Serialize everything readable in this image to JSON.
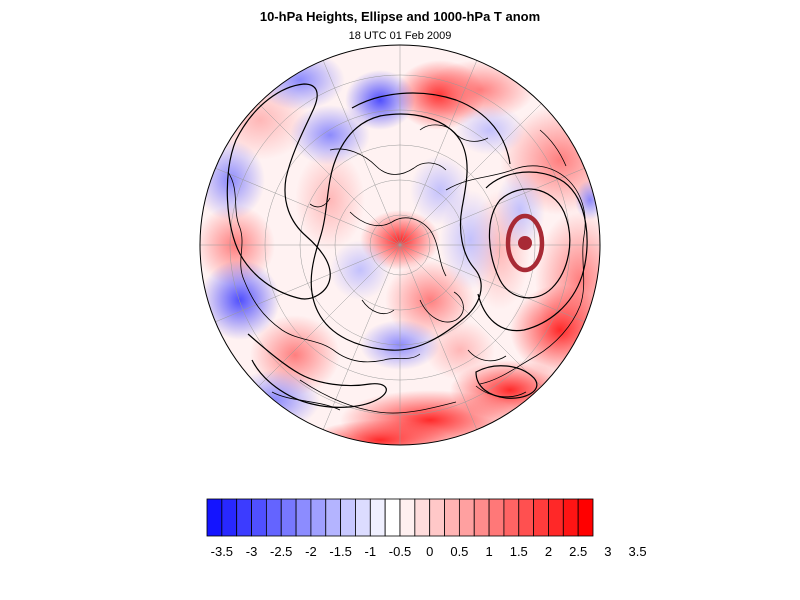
{
  "title": "10-hPa Heights, Ellipse and 1000-hPa T anom",
  "subtitle": "18 UTC 01 Feb 2009",
  "colors": {
    "cold": "#0000ff",
    "warm": "#ff0000",
    "neutral": "#ffffff",
    "ellipse": "#a82a35",
    "contour": "#000000",
    "coast": "#000000",
    "grid": "#9a9a9a"
  },
  "colorbar": {
    "fill_colors": [
      "#1414ff",
      "#2828ff",
      "#3c3cff",
      "#5050ff",
      "#6464ff",
      "#7878ff",
      "#8c8cff",
      "#a0a0ff",
      "#b4b4ff",
      "#c8c8ff",
      "#dcdcff",
      "#f0f0ff",
      "#ffffff",
      "#fff0f0",
      "#ffdcdc",
      "#ffc8c8",
      "#ffb4b4",
      "#ffa0a0",
      "#ff8c8c",
      "#ff7878",
      "#ff6464",
      "#ff5050",
      "#ff3c3c",
      "#ff2828",
      "#ff1414",
      "#ff0000"
    ],
    "labels": [
      "-3.5",
      "-3",
      "-2.5",
      "-2",
      "-1.5",
      "-1",
      "-0.5",
      "0",
      "0.5",
      "1",
      "1.5",
      "2",
      "2.5",
      "3",
      "3.5"
    ]
  }
}
